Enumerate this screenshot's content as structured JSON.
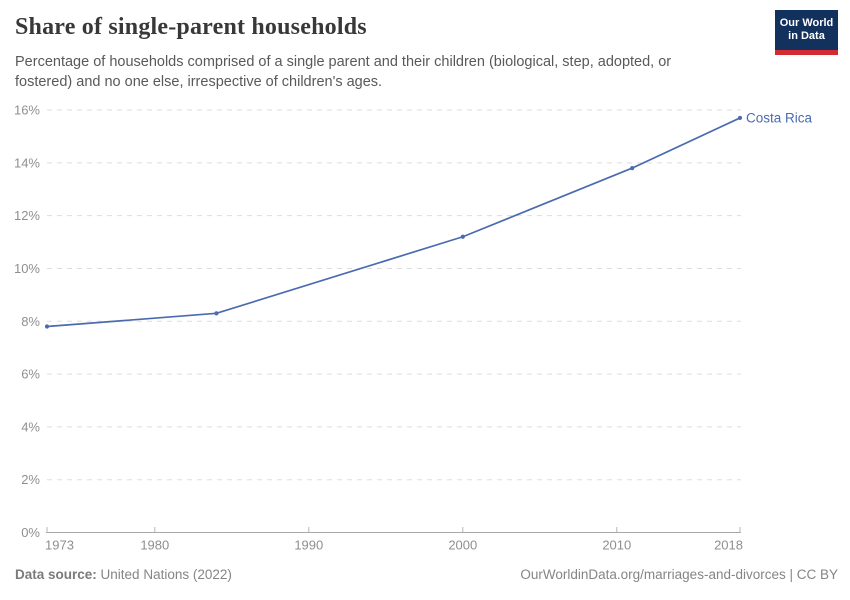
{
  "header": {
    "title": "Share of single-parent households",
    "subtitle": "Percentage of households comprised of a single parent and their children (biological, step, adopted, or fostered) and no one else, irrespective of children's ages.",
    "logo": {
      "line1": "Our World",
      "line2": "in Data"
    }
  },
  "chart_data": {
    "type": "line",
    "title": "Share of single-parent households",
    "xlabel": "",
    "ylabel": "",
    "xlim": [
      1973,
      2018
    ],
    "ylim": [
      0,
      16
    ],
    "x_ticks": [
      1973,
      1980,
      1990,
      2000,
      2010,
      2018
    ],
    "y_ticks": [
      0,
      2,
      4,
      6,
      8,
      10,
      12,
      14,
      16
    ],
    "y_suffix": "%",
    "grid": "horizontal-dashed",
    "legend_position": "line-end-label",
    "series": [
      {
        "name": "Costa Rica",
        "color": "#4A6BB0",
        "x": [
          1973,
          1984,
          2000,
          2011,
          2018
        ],
        "y": [
          7.8,
          8.3,
          11.2,
          13.8,
          15.7
        ]
      }
    ]
  },
  "footer": {
    "source_label": "Data source:",
    "source_value": "United Nations (2022)",
    "credit": "OurWorldinData.org/marriages-and-divorces | CC BY"
  },
  "colors": {
    "line": "#4A6BB0",
    "axis_text": "#8F8F8F",
    "gridline": "#DDDDDD",
    "axis_line": "#A8A8A8",
    "tick_mark": "#B5B5B5",
    "title_text": "#383838",
    "subtitle_text": "#595959",
    "footer_text": "#858585",
    "logo_bg": "#12315C",
    "logo_stripe": "#D42B32"
  }
}
